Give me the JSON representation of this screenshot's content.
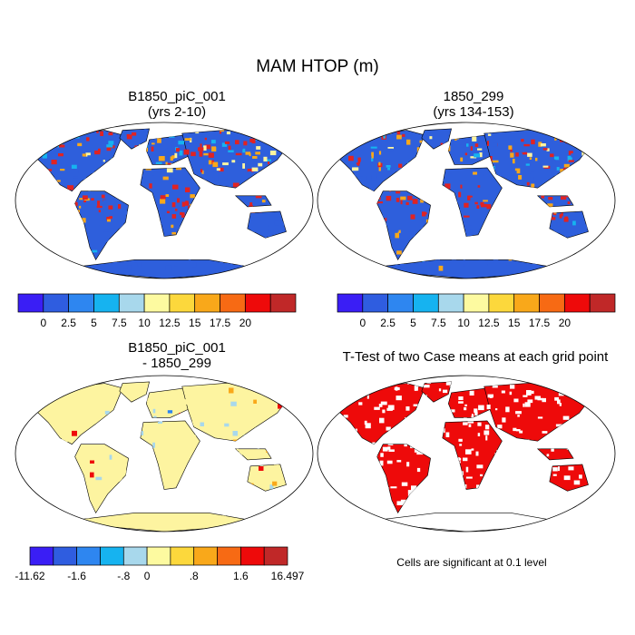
{
  "main_title": "MAM HTOP (m)",
  "panels": [
    {
      "id": "case1",
      "title": "B1850_piC_001",
      "subtitle": "(yrs 2-10)"
    },
    {
      "id": "case2",
      "title": "1850_299",
      "subtitle": "(yrs 134-153)"
    },
    {
      "id": "diff",
      "title": "B1850_piC_001",
      "subtitle": "- 1850_299"
    },
    {
      "id": "ttest",
      "title": "T-Test of two Case means at each grid point",
      "subtitle": ""
    }
  ],
  "footnote": "Cells are significant at 0.1 level",
  "colorbar_abs": {
    "colors": [
      "#3a1ef5",
      "#2f5de0",
      "#2e86f0",
      "#16b3f0",
      "#a8d8ec",
      "#fdfaa0",
      "#fcd83c",
      "#f9a81a",
      "#f76a14",
      "#ee0a0a",
      "#c02828"
    ],
    "labels": [
      "0",
      "2.5",
      "5",
      "7.5",
      "10",
      "12.5",
      "15",
      "17.5",
      "20"
    ]
  },
  "colorbar_diff": {
    "colors": [
      "#3a1ef5",
      "#2f5de0",
      "#2e86f0",
      "#16b3f0",
      "#a8d8ec",
      "#fdfaa0",
      "#fcd83c",
      "#f9a81a",
      "#f76a14",
      "#ee0a0a",
      "#c02828"
    ],
    "labels": [
      "-11.62",
      "-1.6",
      "-.8",
      "0",
      ".8",
      "1.6",
      "16.497"
    ]
  },
  "map_colors": {
    "ocean": "#ffffff",
    "case_land": "#2e5fdc",
    "case_hot": "#e02323",
    "case_warm": "#f9a81a",
    "case_yellow": "#fdf4a0",
    "case_light": "#16b3f0",
    "diff_land": "#fdf4a0",
    "diff_blue": "#a8d8ec",
    "diff_red": "#ee0a0a",
    "ttest_sig": "#ee0a0a"
  }
}
